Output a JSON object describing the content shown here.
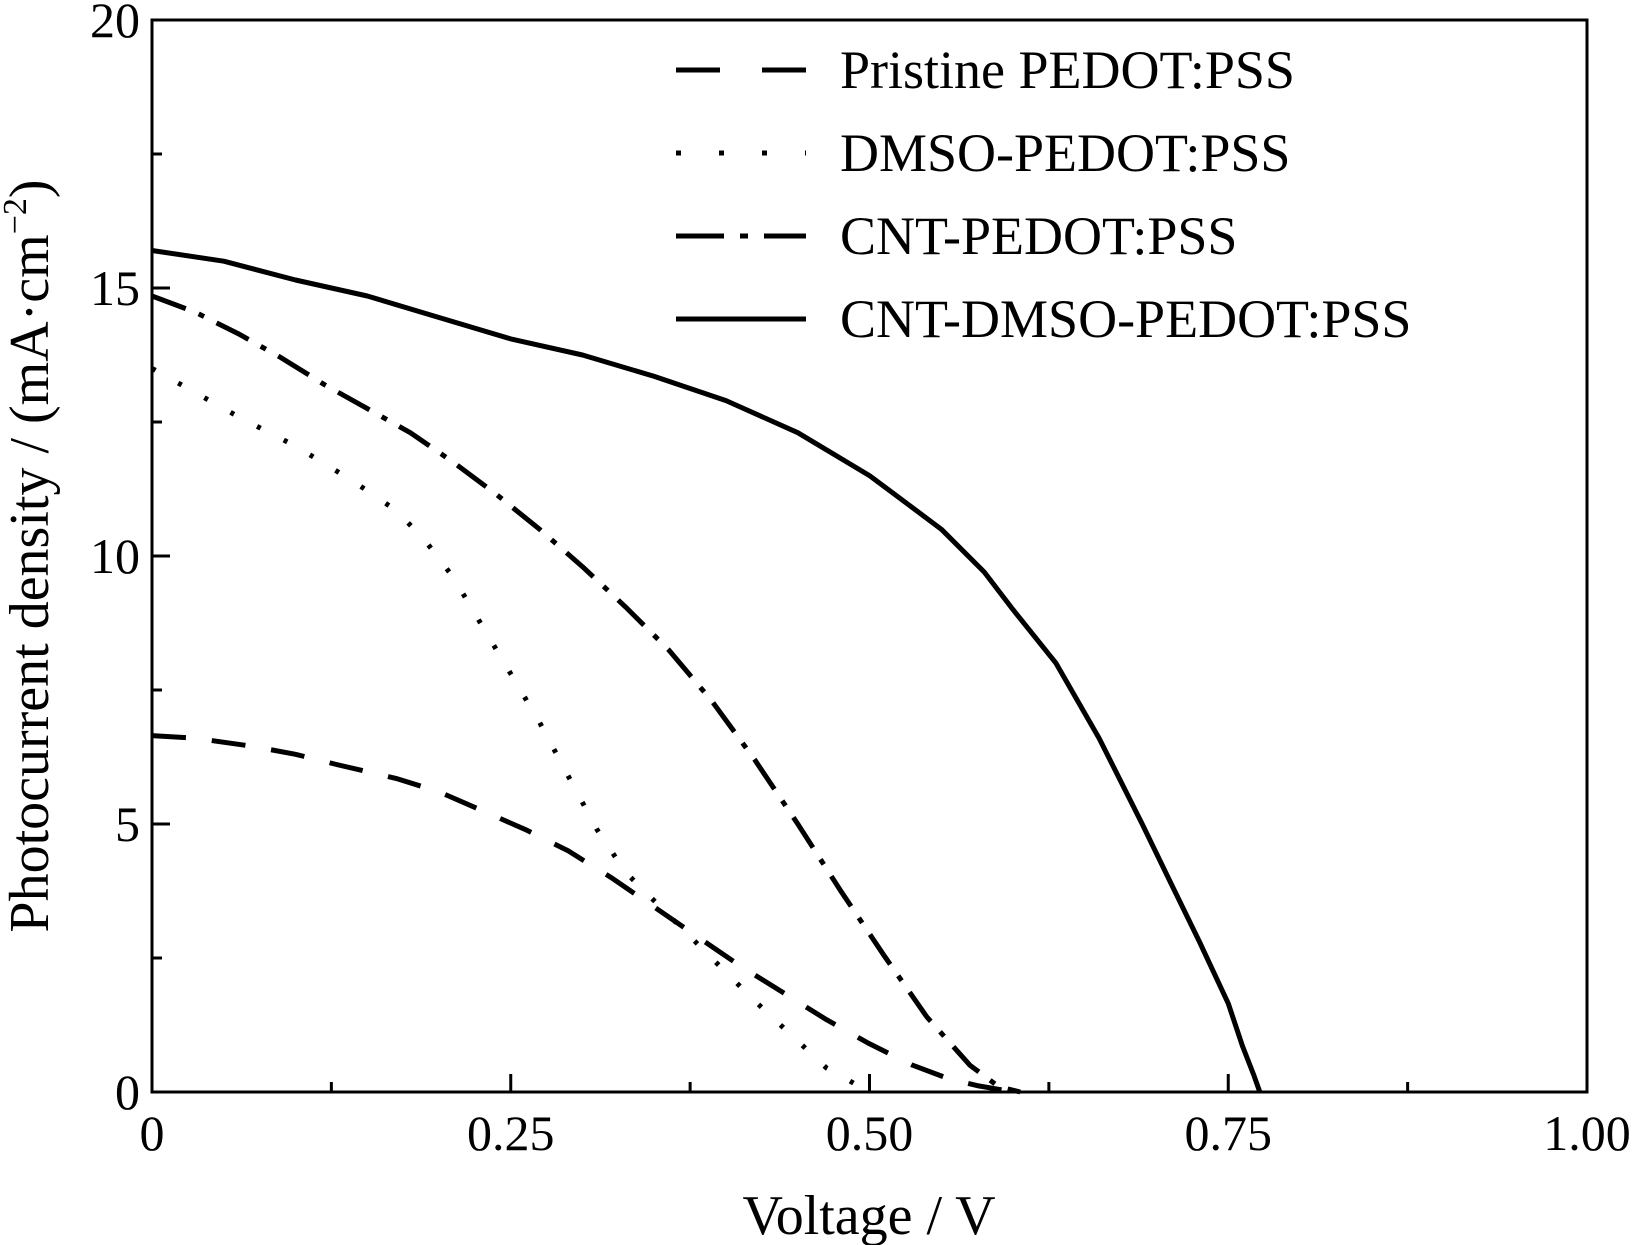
{
  "chart_data": {
    "type": "line",
    "xlabel": "Voltage / V",
    "ylabel": "Photocurrent density / (mA·cm",
    "ylabel_sup": "−2",
    "ylabel_end": ")",
    "xlim": [
      0,
      1.0
    ],
    "ylim": [
      0,
      20
    ],
    "xticks": [
      0,
      0.25,
      0.5,
      0.75,
      1.0
    ],
    "xtick_labels": [
      "0",
      "0.25",
      "0.50",
      "0.75",
      "1.00"
    ],
    "x_minor_ticks": [
      0.125,
      0.375,
      0.625,
      0.875
    ],
    "yticks": [
      0,
      5,
      10,
      15,
      20
    ],
    "ytick_labels": [
      "0",
      "5",
      "10",
      "15",
      "20"
    ],
    "y_minor_ticks": [
      2.5,
      7.5,
      12.5,
      17.5
    ],
    "grid": false,
    "legend_position": "top-right",
    "series": [
      {
        "name": "Pristine PEDOT:PSS",
        "style": "dashed",
        "points": [
          [
            0,
            6.65
          ],
          [
            0.03,
            6.6
          ],
          [
            0.07,
            6.45
          ],
          [
            0.1,
            6.3
          ],
          [
            0.13,
            6.1
          ],
          [
            0.17,
            5.85
          ],
          [
            0.2,
            5.6
          ],
          [
            0.23,
            5.25
          ],
          [
            0.26,
            4.9
          ],
          [
            0.29,
            4.5
          ],
          [
            0.32,
            4.0
          ],
          [
            0.35,
            3.45
          ],
          [
            0.38,
            2.9
          ],
          [
            0.41,
            2.35
          ],
          [
            0.44,
            1.85
          ],
          [
            0.47,
            1.35
          ],
          [
            0.5,
            0.9
          ],
          [
            0.53,
            0.5
          ],
          [
            0.555,
            0.25
          ],
          [
            0.575,
            0.12
          ],
          [
            0.59,
            0.05
          ],
          [
            0.605,
            0.0
          ]
        ]
      },
      {
        "name": "DMSO-PEDOT:PSS",
        "style": "dotted",
        "points": [
          [
            0,
            13.5
          ],
          [
            0.03,
            13.05
          ],
          [
            0.06,
            12.6
          ],
          [
            0.1,
            12.05
          ],
          [
            0.14,
            11.4
          ],
          [
            0.17,
            10.85
          ],
          [
            0.19,
            10.3
          ],
          [
            0.21,
            9.6
          ],
          [
            0.23,
            8.7
          ],
          [
            0.25,
            7.8
          ],
          [
            0.27,
            6.9
          ],
          [
            0.29,
            5.9
          ],
          [
            0.31,
            4.9
          ],
          [
            0.33,
            4.1
          ],
          [
            0.36,
            3.3
          ],
          [
            0.39,
            2.5
          ],
          [
            0.42,
            1.7
          ],
          [
            0.45,
            0.95
          ],
          [
            0.47,
            0.45
          ],
          [
            0.49,
            0.15
          ],
          [
            0.505,
            0.0
          ]
        ]
      },
      {
        "name": "CNT-PEDOT:PSS",
        "style": "dashdot",
        "points": [
          [
            0,
            14.85
          ],
          [
            0.03,
            14.55
          ],
          [
            0.06,
            14.15
          ],
          [
            0.09,
            13.7
          ],
          [
            0.12,
            13.2
          ],
          [
            0.15,
            12.75
          ],
          [
            0.18,
            12.3
          ],
          [
            0.21,
            11.75
          ],
          [
            0.24,
            11.15
          ],
          [
            0.27,
            10.5
          ],
          [
            0.3,
            9.8
          ],
          [
            0.33,
            9.05
          ],
          [
            0.36,
            8.25
          ],
          [
            0.39,
            7.3
          ],
          [
            0.42,
            6.2
          ],
          [
            0.45,
            5.0
          ],
          [
            0.48,
            3.75
          ],
          [
            0.51,
            2.55
          ],
          [
            0.54,
            1.4
          ],
          [
            0.57,
            0.5
          ],
          [
            0.59,
            0.1
          ],
          [
            0.605,
            0.0
          ]
        ]
      },
      {
        "name": "CNT-DMSO-PEDOT:PSS",
        "style": "solid",
        "points": [
          [
            0,
            15.7
          ],
          [
            0.05,
            15.5
          ],
          [
            0.1,
            15.15
          ],
          [
            0.15,
            14.85
          ],
          [
            0.2,
            14.45
          ],
          [
            0.25,
            14.05
          ],
          [
            0.3,
            13.75
          ],
          [
            0.35,
            13.35
          ],
          [
            0.4,
            12.9
          ],
          [
            0.45,
            12.3
          ],
          [
            0.5,
            11.5
          ],
          [
            0.52,
            11.1
          ],
          [
            0.55,
            10.5
          ],
          [
            0.58,
            9.7
          ],
          [
            0.6,
            9.0
          ],
          [
            0.63,
            8.0
          ],
          [
            0.66,
            6.6
          ],
          [
            0.69,
            5.0
          ],
          [
            0.71,
            3.9
          ],
          [
            0.73,
            2.8
          ],
          [
            0.75,
            1.65
          ],
          [
            0.76,
            0.85
          ],
          [
            0.768,
            0.3
          ],
          [
            0.772,
            0.0
          ]
        ]
      }
    ]
  }
}
